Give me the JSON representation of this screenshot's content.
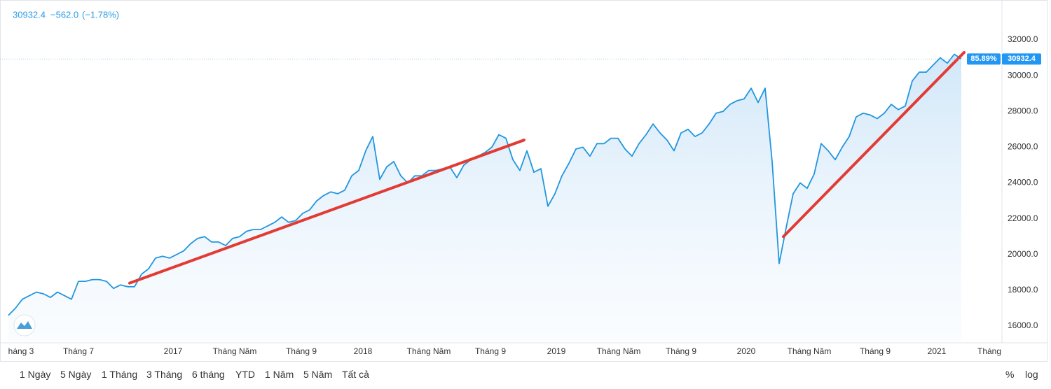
{
  "header": {
    "last": "30932.4",
    "change": "−562.0",
    "change_pct": "(−1.78%)"
  },
  "chart_data": {
    "type": "area",
    "color": "#2196e0",
    "grid": false,
    "values": [
      16600,
      17000,
      17500,
      17700,
      17900,
      17800,
      17600,
      17900,
      17700,
      17500,
      18500,
      18500,
      18600,
      18600,
      18500,
      18100,
      18300,
      18200,
      18200,
      18900,
      19200,
      19800,
      19900,
      19800,
      20000,
      20200,
      20600,
      20900,
      21000,
      20700,
      20700,
      20500,
      20900,
      21000,
      21300,
      21400,
      21400,
      21600,
      21800,
      22100,
      21800,
      21900,
      22300,
      22500,
      23000,
      23300,
      23500,
      23400,
      23600,
      24400,
      24700,
      25800,
      26600,
      24200,
      24900,
      25200,
      24400,
      24000,
      24400,
      24400,
      24700,
      24700,
      24800,
      24900,
      24300,
      25000,
      25300,
      25500,
      25700,
      26000,
      26700,
      26500,
      25300,
      24700,
      25800,
      24600,
      24800,
      22700,
      23400,
      24400,
      25100,
      25900,
      26000,
      25500,
      26200,
      26200,
      26500,
      26500,
      25900,
      25500,
      26200,
      26700,
      27300,
      26800,
      26400,
      25800,
      26800,
      27000,
      26600,
      26800,
      27300,
      27900,
      28000,
      28400,
      28600,
      28700,
      29300,
      28500,
      29300,
      25200,
      19500,
      21500,
      23400,
      24000,
      23700,
      24500,
      26200,
      25800,
      25300,
      26000,
      26600,
      27700,
      27900,
      27800,
      27600,
      27900,
      28400,
      28100,
      28300,
      29700,
      30200,
      30200,
      30600,
      31000,
      30700,
      31200,
      30932.4
    ],
    "percent_change_label": "85.89%",
    "xlim": [
      -1.2,
      141.8
    ],
    "xticks": [
      {
        "value": 1.8,
        "label": "háng 3"
      },
      {
        "value": 10,
        "label": "Tháng 7"
      },
      {
        "value": 23.5,
        "label": "2017"
      },
      {
        "value": 32.3,
        "label": "Tháng Năm"
      },
      {
        "value": 41.8,
        "label": "Tháng 9"
      },
      {
        "value": 50.6,
        "label": "2018"
      },
      {
        "value": 60,
        "label": "Tháng Năm"
      },
      {
        "value": 68.8,
        "label": "Tháng 9"
      },
      {
        "value": 78.2,
        "label": "2019"
      },
      {
        "value": 87.1,
        "label": "Tháng Năm"
      },
      {
        "value": 96,
        "label": "Tháng 9"
      },
      {
        "value": 105.3,
        "label": "2020"
      },
      {
        "value": 114.3,
        "label": "Tháng Năm"
      },
      {
        "value": 123.7,
        "label": "Tháng 9"
      },
      {
        "value": 132.5,
        "label": "2021"
      },
      {
        "value": 140,
        "label": "Tháng"
      }
    ],
    "ylim": [
      15140,
      34036
    ],
    "yticks": [
      {
        "value": 16000,
        "label": "16000.0"
      },
      {
        "value": 18000,
        "label": "18000.0"
      },
      {
        "value": 20000,
        "label": "20000.0"
      },
      {
        "value": 22000,
        "label": "22000.0"
      },
      {
        "value": 24000,
        "label": "24000.0"
      },
      {
        "value": 26000,
        "label": "26000.0"
      },
      {
        "value": 28000,
        "label": "28000.0"
      },
      {
        "value": 30000,
        "label": "30000.0"
      },
      {
        "value": 32000,
        "label": "32000.0"
      }
    ],
    "trend_lines": [
      {
        "start": [
          17.3,
          18400
        ],
        "end": [
          73.6,
          26400
        ],
        "color": "#e23b34"
      },
      {
        "start": [
          110.6,
          21000
        ],
        "end": [
          136.4,
          31300
        ],
        "color": "#e23b34"
      }
    ]
  },
  "range_buttons": [
    "1 Ngày",
    "5 Ngày",
    "1 Tháng",
    "3 Tháng",
    "6 tháng",
    "YTD",
    "1 Năm",
    "5 Năm",
    "Tất cả"
  ],
  "scale_buttons": [
    "%",
    "log"
  ]
}
